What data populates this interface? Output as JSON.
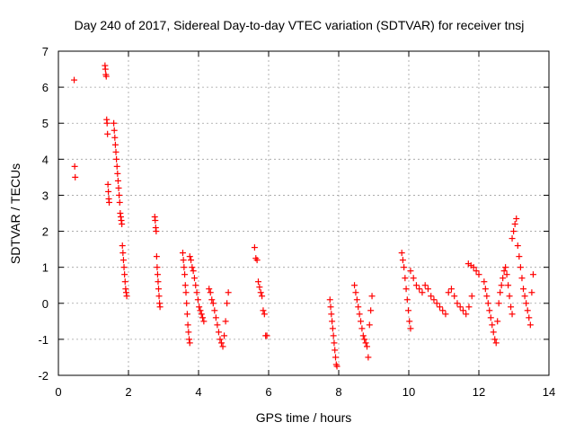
{
  "chart_data": {
    "type": "scatter",
    "title": "Day 240 of 2017, Sidereal Day-to-day VTEC variation (SDTVAR) for receiver tnsj",
    "xlabel": "GPS time / hours",
    "ylabel": "SDTVAR / TECUs",
    "xlim": [
      0,
      14
    ],
    "ylim": [
      -2,
      7
    ],
    "xticks": [
      0,
      2,
      4,
      6,
      8,
      10,
      12,
      14
    ],
    "yticks": [
      -2,
      -1,
      0,
      1,
      2,
      3,
      4,
      5,
      6,
      7
    ],
    "grid": true,
    "marker": "+",
    "color": "#ff0000",
    "series": [
      {
        "name": "SDTVAR",
        "segments": [
          {
            "x0": 0.45,
            "x1": 0.48,
            "y": [
              6.2,
              3.8,
              3.5
            ]
          },
          {
            "x0": 1.33,
            "x1": 1.45,
            "y": [
              6.6,
              6.5,
              6.35,
              6.3,
              5.1,
              5.0,
              4.7,
              3.3,
              3.1,
              2.9,
              2.8
            ]
          },
          {
            "x0": 1.58,
            "x1": 1.95,
            "y": [
              5.0,
              4.8,
              4.6,
              4.4,
              4.2,
              4.0,
              3.8,
              3.6,
              3.4,
              3.2,
              3.0,
              2.8,
              2.5,
              2.4,
              2.3,
              2.2,
              1.6,
              1.4,
              1.2,
              1.0,
              0.8,
              0.6,
              0.4,
              0.3,
              0.2
            ]
          },
          {
            "x0": 2.75,
            "x1": 2.9,
            "y": [
              2.4,
              2.3,
              2.1,
              2.0,
              1.3,
              1.0,
              0.8,
              0.6,
              0.4,
              0.2,
              0.0,
              -0.1
            ]
          },
          {
            "x0": 3.55,
            "x1": 3.75,
            "y": [
              1.4,
              1.2,
              1.0,
              0.8,
              0.5,
              0.3,
              0.0,
              -0.3,
              -0.6,
              -0.8,
              -1.0,
              -1.1
            ]
          },
          {
            "x0": 3.75,
            "x1": 4.15,
            "y": [
              1.3,
              1.2,
              1.0,
              0.9,
              0.7,
              0.5,
              0.3,
              0.1,
              -0.1,
              -0.2,
              -0.3,
              -0.4,
              -0.5
            ]
          },
          {
            "x0": 4.3,
            "x1": 4.85,
            "y": [
              0.4,
              0.3,
              0.1,
              0.0,
              -0.2,
              -0.4,
              -0.6,
              -0.8,
              -1.0,
              -1.1,
              -1.2,
              -0.9,
              -0.5,
              0.0,
              0.3
            ]
          },
          {
            "x0": 5.6,
            "x1": 5.95,
            "y": [
              1.55,
              1.25,
              1.2,
              0.6,
              0.45,
              0.3,
              0.2,
              -0.2,
              -0.3,
              -0.9,
              -0.9
            ]
          },
          {
            "x0": 7.75,
            "x1": 7.95,
            "y": [
              0.1,
              -0.1,
              -0.3,
              -0.5,
              -0.7,
              -0.9,
              -1.1,
              -1.3,
              -1.5,
              -1.7,
              -1.75
            ]
          },
          {
            "x0": 8.45,
            "x1": 8.95,
            "y": [
              0.5,
              0.3,
              0.1,
              -0.1,
              -0.3,
              -0.5,
              -0.7,
              -0.9,
              -1.0,
              -1.1,
              -1.2,
              -1.5,
              -0.6,
              -0.2,
              0.2
            ]
          },
          {
            "x0": 9.8,
            "x1": 10.05,
            "y": [
              1.4,
              1.2,
              1.0,
              0.7,
              0.4,
              0.1,
              -0.2,
              -0.5,
              -0.7
            ]
          },
          {
            "x0": 10.05,
            "x1": 11.8,
            "y": [
              0.9,
              0.7,
              0.5,
              0.4,
              0.3,
              0.5,
              0.4,
              0.2,
              0.1,
              0.0,
              -0.1,
              -0.2,
              -0.3,
              0.3,
              0.4,
              0.2,
              0.0,
              -0.1,
              -0.2,
              -0.3,
              -0.1,
              0.2
            ]
          },
          {
            "x0": 11.7,
            "x1": 12.0,
            "y": [
              1.1,
              1.05,
              1.0,
              0.9,
              0.8
            ]
          },
          {
            "x0": 12.15,
            "x1": 12.95,
            "y": [
              0.6,
              0.4,
              0.2,
              0.0,
              -0.2,
              -0.4,
              -0.6,
              -0.8,
              -1.0,
              -1.1,
              -0.5,
              0.0,
              0.3,
              0.5,
              0.7,
              0.9,
              1.0,
              0.8,
              0.5,
              0.2,
              -0.1,
              -0.3
            ]
          },
          {
            "x0": 12.95,
            "x1": 13.55,
            "y": [
              1.8,
              2.0,
              2.2,
              2.35,
              1.6,
              1.3,
              1.0,
              0.7,
              0.4,
              0.2,
              0.0,
              -0.2,
              -0.4,
              -0.6,
              0.3,
              0.8
            ]
          }
        ]
      }
    ]
  }
}
